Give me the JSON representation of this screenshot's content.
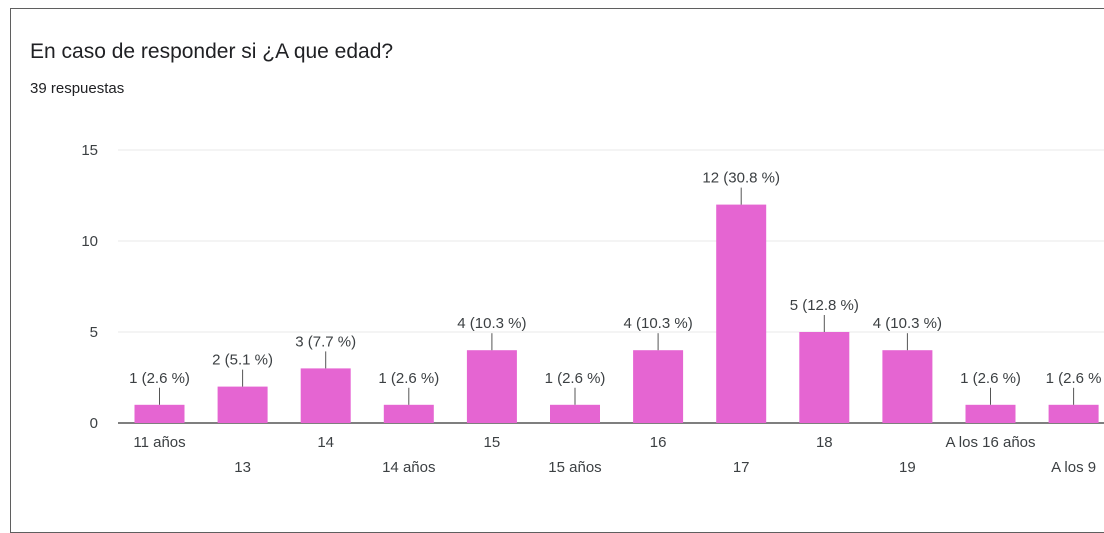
{
  "form": {
    "question": "En caso de responder si ¿A que edad?",
    "responses": "39 respuestas"
  },
  "chart_data": {
    "type": "bar",
    "title": "En caso de responder si ¿A que edad?",
    "subtitle": "39 respuestas",
    "categories": [
      "11 años",
      "13",
      "14",
      "14 años",
      "15",
      "15 años",
      "16",
      "17",
      "18",
      "19",
      "A los 16 años",
      "A los 9"
    ],
    "values": [
      1,
      2,
      3,
      1,
      4,
      1,
      4,
      12,
      5,
      4,
      1,
      1
    ],
    "data_labels": [
      "1 (2.6 %)",
      "2 (5.1 %)",
      "3 (7.7 %)",
      "1 (2.6 %)",
      "4 (10.3 %)",
      "1 (2.6 %)",
      "4 (10.3 %)",
      "12 (30.8 %)",
      "5 (12.8 %)",
      "4 (10.3 %)",
      "1 (2.6 %)",
      "1 (2.6 %"
    ],
    "yticks": [
      "0",
      "5",
      "10",
      "15"
    ],
    "ylim": [
      0,
      15
    ],
    "grid": true,
    "legend": "none",
    "colors": {
      "bar": "#e565d2",
      "grid": "#e8e8e8",
      "baseline": "#333333",
      "text": "#3c4043"
    }
  }
}
